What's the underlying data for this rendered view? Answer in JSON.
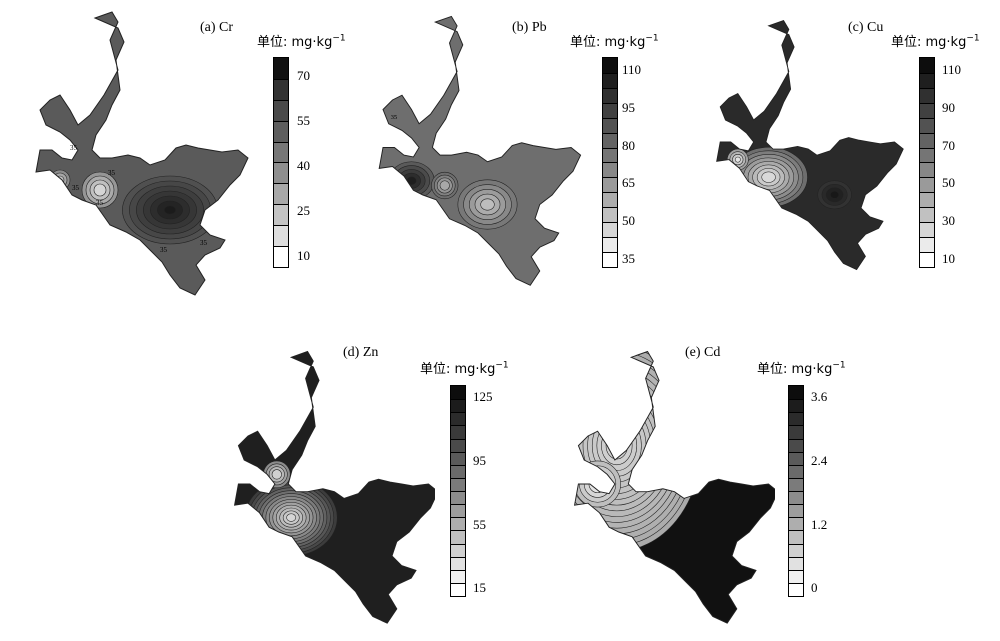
{
  "panels": [
    {
      "id": "cr",
      "title": "(a) Cr",
      "unit_label": "单位: mg·kg",
      "unit_exp": "−1",
      "ticks": [
        "70",
        "55",
        "40",
        "25",
        "10"
      ],
      "contour_labels": [
        "35",
        "35",
        "35",
        "35",
        "35",
        "35"
      ],
      "colors": [
        "#111111",
        "#333333",
        "#4a4a4a",
        "#5e5e5e",
        "#777777",
        "#8f8f8f",
        "#a8a8a8",
        "#c4c4c4",
        "#dedede",
        "#ffffff"
      ]
    },
    {
      "id": "pb",
      "title": "(b) Pb",
      "unit_label": "单位: mg·kg",
      "unit_exp": "−1",
      "ticks": [
        "110",
        "95",
        "80",
        "65",
        "50",
        "35"
      ],
      "contour_labels": [
        "35"
      ],
      "colors": [
        "#0d0d0d",
        "#1f1f1f",
        "#303030",
        "#414141",
        "#525252",
        "#636363",
        "#757575",
        "#878787",
        "#9a9a9a",
        "#adadad",
        "#c1c1c1",
        "#d6d6d6",
        "#ebebeb",
        "#ffffff"
      ]
    },
    {
      "id": "cu",
      "title": "(c) Cu",
      "unit_label": "单位: mg·kg",
      "unit_exp": "−1",
      "ticks": [
        "110",
        "90",
        "70",
        "50",
        "30",
        "10"
      ],
      "contour_labels": [],
      "colors": [
        "#0d0d0d",
        "#1f1f1f",
        "#303030",
        "#414141",
        "#525252",
        "#636363",
        "#757575",
        "#878787",
        "#9a9a9a",
        "#adadad",
        "#c1c1c1",
        "#d6d6d6",
        "#ebebeb",
        "#ffffff"
      ]
    },
    {
      "id": "zn",
      "title": "(d) Zn",
      "unit_label": "单位: mg·kg",
      "unit_exp": "−1",
      "ticks": [
        "125",
        "95",
        "55",
        "15"
      ],
      "contour_labels": [],
      "colors": [
        "#0d0d0d",
        "#1c1c1c",
        "#2b2b2b",
        "#3a3a3a",
        "#4a4a4a",
        "#5a5a5a",
        "#6a6a6a",
        "#7b7b7b",
        "#8c8c8c",
        "#9d9d9d",
        "#aeaeae",
        "#bfbfbf",
        "#d0d0d0",
        "#e1e1e1",
        "#f0f0f0",
        "#ffffff"
      ]
    },
    {
      "id": "cd",
      "title": "(e) Cd",
      "unit_label": "单位: mg·kg",
      "unit_exp": "−1",
      "ticks": [
        "3.6",
        "2.4",
        "1.2",
        "0"
      ],
      "contour_labels": [],
      "colors": [
        "#0d0d0d",
        "#1c1c1c",
        "#2b2b2b",
        "#3a3a3a",
        "#4a4a4a",
        "#5a5a5a",
        "#6a6a6a",
        "#7b7b7b",
        "#8c8c8c",
        "#9d9d9d",
        "#aeaeae",
        "#bfbfbf",
        "#d0d0d0",
        "#e1e1e1",
        "#f0f0f0",
        "#ffffff"
      ]
    }
  ]
}
